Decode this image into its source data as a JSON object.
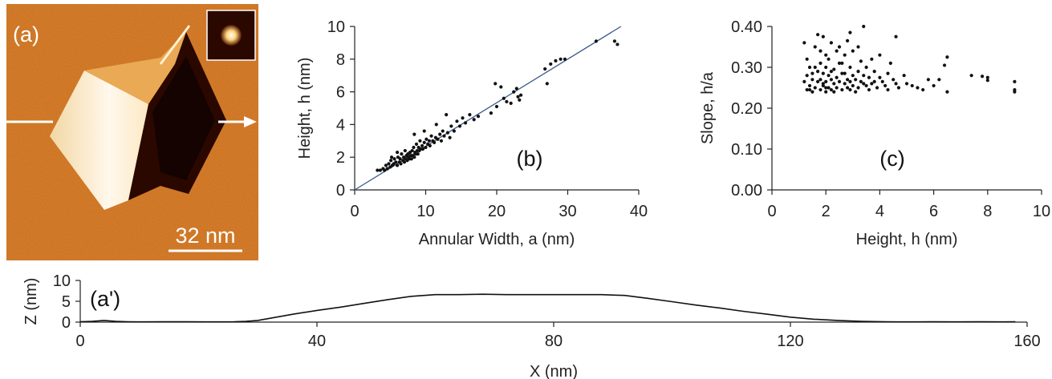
{
  "panels": {
    "a": {
      "panel_label": "(a)",
      "scale_bar_label": "32 nm",
      "colors": {
        "dark": "#2a0800",
        "mid": "#c8660e",
        "light": "#fff6e6"
      }
    }
  },
  "chart_data": [
    {
      "id": "b",
      "type": "scatter",
      "panel_label": "(b)",
      "xlabel": "Annular Width, a (nm)",
      "ylabel": "Height, h (nm)",
      "xlim": [
        0,
        40
      ],
      "ylim": [
        0,
        10
      ],
      "xticks": [
        0,
        10,
        20,
        30,
        40
      ],
      "yticks": [
        0,
        2,
        4,
        6,
        8,
        10
      ],
      "fit_line": {
        "x": [
          0,
          37.5
        ],
        "y": [
          0,
          10.0
        ],
        "color": "#3a5a8c"
      },
      "points": [
        [
          3.2,
          1.2
        ],
        [
          3.6,
          1.2
        ],
        [
          4.0,
          1.3
        ],
        [
          4.2,
          1.2
        ],
        [
          4.4,
          1.5
        ],
        [
          4.6,
          1.3
        ],
        [
          4.8,
          1.6
        ],
        [
          5.0,
          1.4
        ],
        [
          5.1,
          1.8
        ],
        [
          5.3,
          1.5
        ],
        [
          5.5,
          1.6
        ],
        [
          5.6,
          1.9
        ],
        [
          5.8,
          1.7
        ],
        [
          6.0,
          1.5
        ],
        [
          6.1,
          2.0
        ],
        [
          6.3,
          1.7
        ],
        [
          6.4,
          1.9
        ],
        [
          6.5,
          1.6
        ],
        [
          6.6,
          2.2
        ],
        [
          6.8,
          1.8
        ],
        [
          6.9,
          2.0
        ],
        [
          7.0,
          1.7
        ],
        [
          7.1,
          2.4
        ],
        [
          7.2,
          1.9
        ],
        [
          7.3,
          2.1
        ],
        [
          7.4,
          1.8
        ],
        [
          7.5,
          2.2
        ],
        [
          7.6,
          2.0
        ],
        [
          7.7,
          1.9
        ],
        [
          7.8,
          2.3
        ],
        [
          7.9,
          2.1
        ],
        [
          8.0,
          1.9
        ],
        [
          8.1,
          2.4
        ],
        [
          8.2,
          2.1
        ],
        [
          8.3,
          2.6
        ],
        [
          8.4,
          2.0
        ],
        [
          8.5,
          2.3
        ],
        [
          8.6,
          2.2
        ],
        [
          8.7,
          2.8
        ],
        [
          8.8,
          2.4
        ],
        [
          8.9,
          2.2
        ],
        [
          9.0,
          2.6
        ],
        [
          9.1,
          2.4
        ],
        [
          9.2,
          3.0
        ],
        [
          9.3,
          2.5
        ],
        [
          9.5,
          2.7
        ],
        [
          9.6,
          2.5
        ],
        [
          9.8,
          2.9
        ],
        [
          10.0,
          2.6
        ],
        [
          10.1,
          3.1
        ],
        [
          10.3,
          2.8
        ],
        [
          10.5,
          3.0
        ],
        [
          10.6,
          2.7
        ],
        [
          10.8,
          3.3
        ],
        [
          11.0,
          3.0
        ],
        [
          11.2,
          2.9
        ],
        [
          11.4,
          3.2
        ],
        [
          11.5,
          4.0
        ],
        [
          11.7,
          3.1
        ],
        [
          12.0,
          3.4
        ],
        [
          12.2,
          3.0
        ],
        [
          12.4,
          3.6
        ],
        [
          12.6,
          3.3
        ],
        [
          12.9,
          4.6
        ],
        [
          13.1,
          3.5
        ],
        [
          13.4,
          3.2
        ],
        [
          13.6,
          3.9
        ],
        [
          14.0,
          3.6
        ],
        [
          14.4,
          4.2
        ],
        [
          14.8,
          3.9
        ],
        [
          15.2,
          4.4
        ],
        [
          15.6,
          4.1
        ],
        [
          16.2,
          4.6
        ],
        [
          16.8,
          4.3
        ],
        [
          17.4,
          4.5
        ],
        [
          8.4,
          3.4
        ],
        [
          6.0,
          2.3
        ],
        [
          5.2,
          2.0
        ],
        [
          9.8,
          3.6
        ],
        [
          19.2,
          4.7
        ],
        [
          19.8,
          6.5
        ],
        [
          20.0,
          5.1
        ],
        [
          20.6,
          6.3
        ],
        [
          21.0,
          5.6
        ],
        [
          21.4,
          5.4
        ],
        [
          22.0,
          5.3
        ],
        [
          22.4,
          6.0
        ],
        [
          22.8,
          6.2
        ],
        [
          23.0,
          5.7
        ],
        [
          23.4,
          5.8
        ],
        [
          23.2,
          5.5
        ],
        [
          26.8,
          7.4
        ],
        [
          27.1,
          6.5
        ],
        [
          27.6,
          7.7
        ],
        [
          28.3,
          7.9
        ],
        [
          29.0,
          8.0
        ],
        [
          29.6,
          8.0
        ],
        [
          34.0,
          9.1
        ],
        [
          36.6,
          9.1
        ],
        [
          37.0,
          8.9
        ]
      ]
    },
    {
      "id": "c",
      "type": "scatter",
      "panel_label": "(c)",
      "xlabel": "Height, h (nm)",
      "ylabel": "Slope, h/a",
      "xlim": [
        0,
        10
      ],
      "ylim": [
        0,
        0.4
      ],
      "xticks": [
        0,
        2,
        4,
        6,
        8,
        10
      ],
      "xtick_labels": [
        "0",
        "2",
        "4",
        "6",
        "8",
        "10"
      ],
      "yticks": [
        0,
        0.1,
        0.2,
        0.3,
        0.4
      ],
      "ytick_labels": [
        "0.00",
        "0.10",
        "0.20",
        "0.30",
        "0.40"
      ],
      "points": [
        [
          1.2,
          0.36
        ],
        [
          1.2,
          0.265
        ],
        [
          1.3,
          0.245
        ],
        [
          1.3,
          0.28
        ],
        [
          1.4,
          0.255
        ],
        [
          1.4,
          0.3
        ],
        [
          1.5,
          0.24
        ],
        [
          1.5,
          0.27
        ],
        [
          1.6,
          0.35
        ],
        [
          1.6,
          0.25
        ],
        [
          1.7,
          0.38
        ],
        [
          1.7,
          0.265
        ],
        [
          1.7,
          0.29
        ],
        [
          1.8,
          0.245
        ],
        [
          1.8,
          0.31
        ],
        [
          1.8,
          0.27
        ],
        [
          1.9,
          0.375
        ],
        [
          1.9,
          0.255
        ],
        [
          1.9,
          0.285
        ],
        [
          2.0,
          0.24
        ],
        [
          2.0,
          0.3
        ],
        [
          2.0,
          0.265
        ],
        [
          2.1,
          0.32
        ],
        [
          2.1,
          0.25
        ],
        [
          2.1,
          0.28
        ],
        [
          2.2,
          0.36
        ],
        [
          2.2,
          0.27
        ],
        [
          2.2,
          0.245
        ],
        [
          2.3,
          0.295
        ],
        [
          2.3,
          0.26
        ],
        [
          2.4,
          0.34
        ],
        [
          2.4,
          0.275
        ],
        [
          2.4,
          0.25
        ],
        [
          2.5,
          0.31
        ],
        [
          2.5,
          0.265
        ],
        [
          2.6,
          0.245
        ],
        [
          2.6,
          0.285
        ],
        [
          2.7,
          0.33
        ],
        [
          2.7,
          0.26
        ],
        [
          2.8,
          0.365
        ],
        [
          2.8,
          0.27
        ],
        [
          2.8,
          0.25
        ],
        [
          2.9,
          0.385
        ],
        [
          2.9,
          0.3
        ],
        [
          2.9,
          0.265
        ],
        [
          3.0,
          0.34
        ],
        [
          3.0,
          0.28
        ],
        [
          3.0,
          0.255
        ],
        [
          3.1,
          0.27
        ],
        [
          3.2,
          0.35
        ],
        [
          3.2,
          0.29
        ],
        [
          3.2,
          0.25
        ],
        [
          3.3,
          0.315
        ],
        [
          3.3,
          0.265
        ],
        [
          3.4,
          0.4
        ],
        [
          3.4,
          0.28
        ],
        [
          3.5,
          0.255
        ],
        [
          3.5,
          0.3
        ],
        [
          3.6,
          0.275
        ],
        [
          3.7,
          0.32
        ],
        [
          3.7,
          0.26
        ],
        [
          3.8,
          0.29
        ],
        [
          3.9,
          0.25
        ],
        [
          4.0,
          0.275
        ],
        [
          4.0,
          0.33
        ],
        [
          4.1,
          0.265
        ],
        [
          4.2,
          0.255
        ],
        [
          4.3,
          0.285
        ],
        [
          4.4,
          0.31
        ],
        [
          4.5,
          0.27
        ],
        [
          4.6,
          0.375
        ],
        [
          4.6,
          0.26
        ],
        [
          4.7,
          0.25
        ],
        [
          4.9,
          0.28
        ],
        [
          5.0,
          0.26
        ],
        [
          5.2,
          0.255
        ],
        [
          5.4,
          0.25
        ],
        [
          5.6,
          0.245
        ],
        [
          5.8,
          0.27
        ],
        [
          6.0,
          0.255
        ],
        [
          6.2,
          0.27
        ],
        [
          6.4,
          0.305
        ],
        [
          6.5,
          0.325
        ],
        [
          6.5,
          0.24
        ],
        [
          7.4,
          0.28
        ],
        [
          7.8,
          0.278
        ],
        [
          8.0,
          0.275
        ],
        [
          8.0,
          0.268
        ],
        [
          9.0,
          0.265
        ],
        [
          9.0,
          0.245
        ],
        [
          9.0,
          0.24
        ],
        [
          2.0,
          0.33
        ],
        [
          2.6,
          0.31
        ],
        [
          1.5,
          0.285
        ],
        [
          3.6,
          0.245
        ],
        [
          1.9,
          0.26
        ],
        [
          2.3,
          0.24
        ],
        [
          1.3,
          0.32
        ],
        [
          2.5,
          0.35
        ],
        [
          3.1,
          0.24
        ],
        [
          1.6,
          0.3
        ],
        [
          2.2,
          0.29
        ],
        [
          2.7,
          0.285
        ],
        [
          1.8,
          0.34
        ],
        [
          3.8,
          0.265
        ],
        [
          4.3,
          0.245
        ],
        [
          1.4,
          0.245
        ],
        [
          2.0,
          0.25
        ],
        [
          2.9,
          0.245
        ],
        [
          3.4,
          0.26
        ]
      ]
    },
    {
      "id": "a-prime",
      "type": "line",
      "panel_label": "(a')",
      "xlabel": "X (nm)",
      "ylabel": "Z (nm)",
      "xlim": [
        0,
        160
      ],
      "ylim": [
        0,
        10
      ],
      "xticks": [
        0,
        40,
        80,
        120,
        160
      ],
      "yticks": [
        0,
        5,
        10
      ],
      "series": [
        {
          "color": "#111111",
          "x": [
            0,
            2,
            4,
            6,
            8,
            10,
            14,
            18,
            22,
            26,
            28,
            30,
            32,
            36,
            40,
            44,
            48,
            52,
            56,
            60,
            64,
            68,
            72,
            76,
            80,
            84,
            88,
            92,
            96,
            100,
            104,
            108,
            112,
            116,
            120,
            124,
            128,
            132,
            136,
            138,
            140,
            144,
            148,
            152,
            156,
            158
          ],
          "y": [
            0.1,
            0.2,
            0.4,
            0.2,
            0.1,
            0.05,
            0.1,
            0.1,
            0.05,
            0.1,
            0.2,
            0.4,
            0.9,
            1.9,
            2.8,
            3.6,
            4.5,
            5.4,
            6.2,
            6.6,
            6.6,
            6.7,
            6.6,
            6.6,
            6.6,
            6.6,
            6.6,
            6.4,
            5.7,
            4.9,
            4.1,
            3.4,
            2.6,
            1.9,
            1.2,
            0.7,
            0.4,
            0.2,
            0.1,
            0.05,
            0.05,
            0.1,
            0.05,
            0.1,
            0.05,
            0.1
          ]
        }
      ]
    }
  ]
}
